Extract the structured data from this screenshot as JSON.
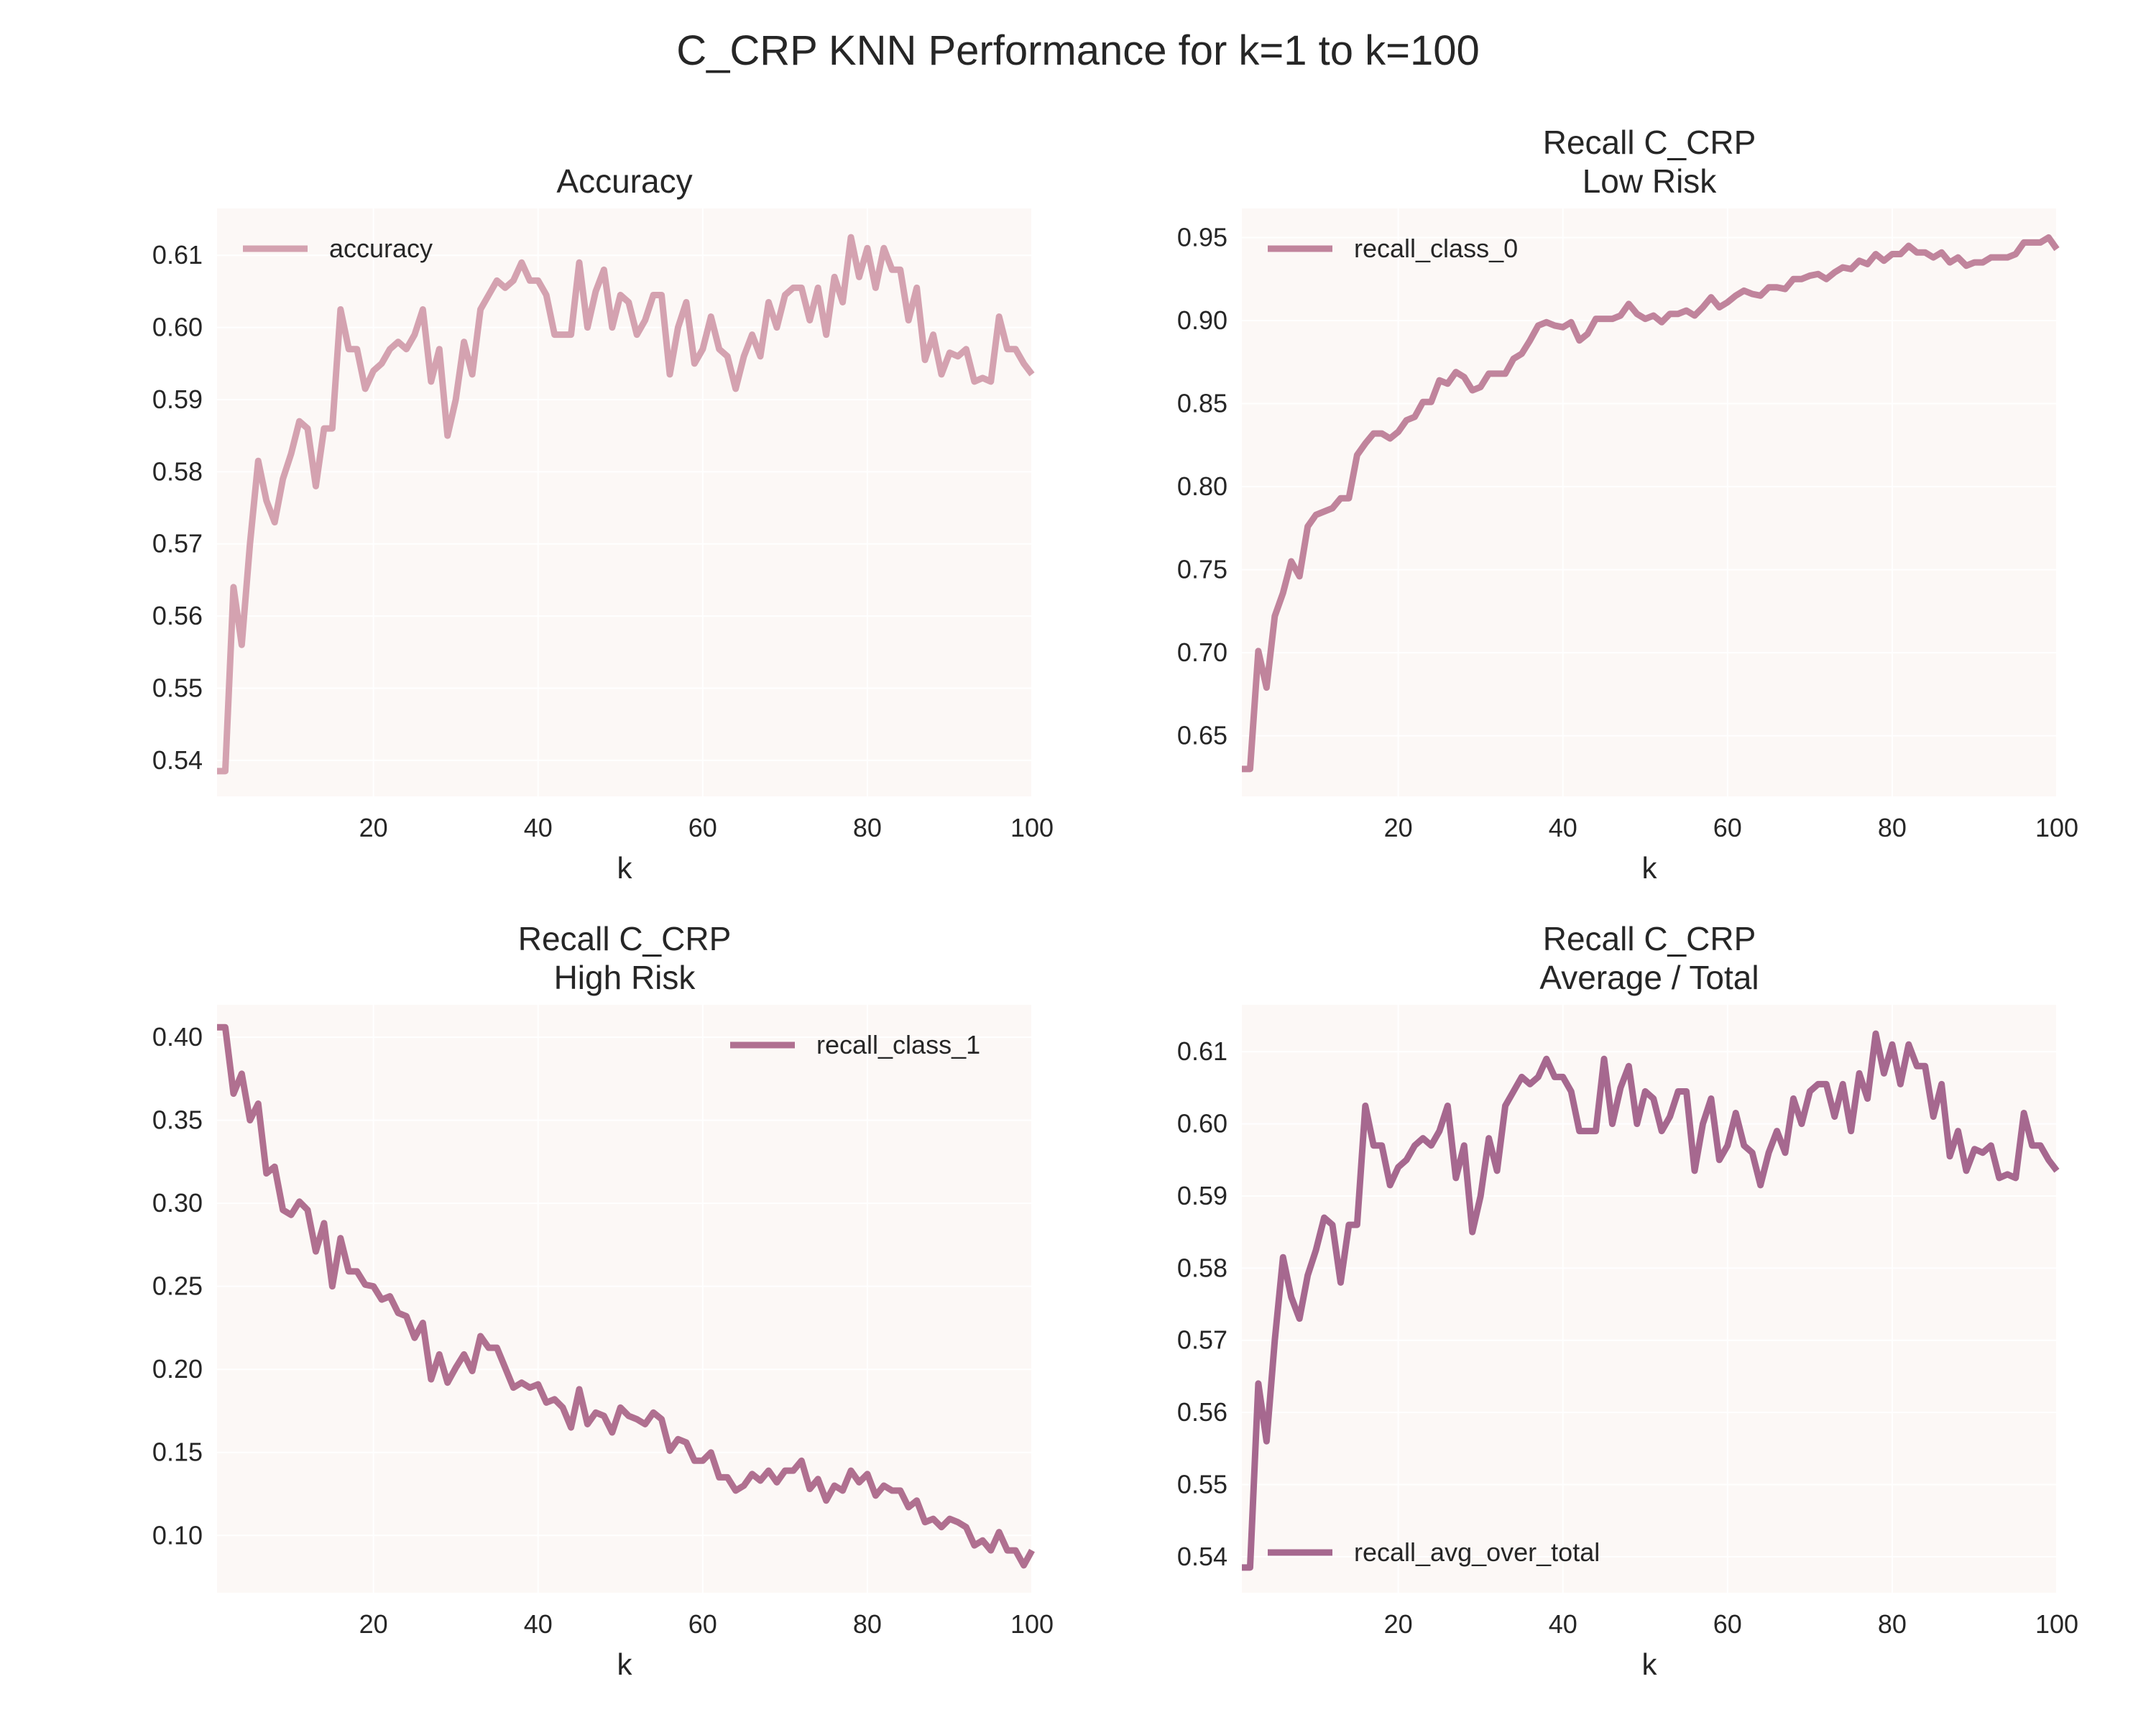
{
  "figure": {
    "title": "C_CRP KNN Performance for k=1 to k=100"
  },
  "theme": {
    "plot_bg": "#fcf8f6",
    "grid": "#ffffff",
    "text": "#262626"
  },
  "chart_data": [
    {
      "type": "line",
      "title": "Accuracy",
      "xlabel": "k",
      "ylabel": "",
      "xlim": [
        1,
        100
      ],
      "ylim": [
        0.535,
        0.6165
      ],
      "xticks": [
        20,
        40,
        60,
        80,
        100
      ],
      "yticks": [
        0.54,
        0.55,
        0.56,
        0.57,
        0.58,
        0.59,
        0.6,
        0.61
      ],
      "ytick_labels": [
        "0.54",
        "0.55",
        "0.56",
        "0.57",
        "0.58",
        "0.59",
        "0.60",
        "0.61"
      ],
      "legend_position": "upper-left",
      "grid": true,
      "series": [
        {
          "name": "accuracy",
          "color": "#d4a2b0",
          "x_start": 1,
          "values": [
            0.5385,
            0.5385,
            0.564,
            0.556,
            0.57,
            0.5815,
            0.576,
            0.573,
            0.579,
            0.5825,
            0.587,
            0.586,
            0.578,
            0.586,
            0.586,
            0.6025,
            0.597,
            0.597,
            0.5915,
            0.594,
            0.595,
            0.597,
            0.598,
            0.597,
            0.599,
            0.6025,
            0.5925,
            0.597,
            0.585,
            0.59,
            0.598,
            0.5935,
            0.6025,
            0.6045,
            0.6065,
            0.6055,
            0.6065,
            0.609,
            0.6065,
            0.6065,
            0.6045,
            0.599,
            0.599,
            0.599,
            0.609,
            0.6,
            0.605,
            0.608,
            0.6,
            0.6045,
            0.6035,
            0.599,
            0.601,
            0.6045,
            0.6045,
            0.5935,
            0.6,
            0.6035,
            0.595,
            0.597,
            0.6015,
            0.597,
            0.596,
            0.5915,
            0.596,
            0.599,
            0.596,
            0.6035,
            0.6,
            0.6045,
            0.6055,
            0.6055,
            0.601,
            0.6055,
            0.599,
            0.607,
            0.6035,
            0.6125,
            0.607,
            0.611,
            0.6055,
            0.611,
            0.608,
            0.608,
            0.601,
            0.6055,
            0.5955,
            0.599,
            0.5935,
            0.5965,
            0.596,
            0.597,
            0.5925,
            0.593,
            0.5925,
            0.6015,
            0.597,
            0.597,
            0.595,
            0.5935
          ]
        }
      ]
    },
    {
      "type": "line",
      "title": "Recall C_CRP\nLow Risk",
      "xlabel": "k",
      "ylabel": "",
      "xlim": [
        1,
        100
      ],
      "ylim": [
        0.6135,
        0.9675
      ],
      "xticks": [
        20,
        40,
        60,
        80,
        100
      ],
      "yticks": [
        0.65,
        0.7,
        0.75,
        0.8,
        0.85,
        0.9,
        0.95
      ],
      "ytick_labels": [
        "0.65",
        "0.70",
        "0.75",
        "0.80",
        "0.85",
        "0.90",
        "0.95"
      ],
      "legend_position": "upper-left",
      "grid": true,
      "series": [
        {
          "name": "recall_class_0",
          "color": "#c0849c",
          "x_start": 1,
          "values": [
            0.63,
            0.63,
            0.701,
            0.679,
            0.722,
            0.736,
            0.755,
            0.746,
            0.776,
            0.783,
            0.785,
            0.787,
            0.793,
            0.793,
            0.819,
            0.826,
            0.832,
            0.832,
            0.829,
            0.833,
            0.84,
            0.842,
            0.851,
            0.851,
            0.864,
            0.862,
            0.869,
            0.866,
            0.858,
            0.86,
            0.868,
            0.868,
            0.868,
            0.877,
            0.88,
            0.888,
            0.897,
            0.899,
            0.897,
            0.896,
            0.899,
            0.888,
            0.892,
            0.901,
            0.901,
            0.901,
            0.903,
            0.91,
            0.904,
            0.901,
            0.903,
            0.899,
            0.904,
            0.904,
            0.906,
            0.903,
            0.908,
            0.914,
            0.908,
            0.911,
            0.915,
            0.918,
            0.916,
            0.915,
            0.92,
            0.92,
            0.919,
            0.925,
            0.925,
            0.927,
            0.928,
            0.925,
            0.929,
            0.932,
            0.931,
            0.936,
            0.934,
            0.94,
            0.936,
            0.94,
            0.94,
            0.945,
            0.941,
            0.941,
            0.938,
            0.941,
            0.935,
            0.938,
            0.933,
            0.935,
            0.935,
            0.938,
            0.938,
            0.938,
            0.94,
            0.947,
            0.947,
            0.947,
            0.95,
            0.943
          ]
        }
      ]
    },
    {
      "type": "line",
      "title": "Recall C_CRP\nHigh Risk",
      "xlabel": "k",
      "ylabel": "",
      "xlim": [
        1,
        100
      ],
      "ylim": [
        0.0655,
        0.4195
      ],
      "xticks": [
        20,
        40,
        60,
        80,
        100
      ],
      "yticks": [
        0.1,
        0.15,
        0.2,
        0.25,
        0.3,
        0.35,
        0.4
      ],
      "ytick_labels": [
        "0.10",
        "0.15",
        "0.20",
        "0.25",
        "0.30",
        "0.35",
        "0.40"
      ],
      "legend_position": "upper-right",
      "grid": true,
      "series": [
        {
          "name": "recall_class_1",
          "color": "#b07090",
          "x_start": 1,
          "values": [
            0.406,
            0.406,
            0.366,
            0.378,
            0.35,
            0.36,
            0.318,
            0.322,
            0.296,
            0.293,
            0.301,
            0.296,
            0.271,
            0.288,
            0.25,
            0.279,
            0.259,
            0.259,
            0.251,
            0.25,
            0.242,
            0.244,
            0.234,
            0.232,
            0.219,
            0.228,
            0.194,
            0.209,
            0.192,
            0.201,
            0.209,
            0.199,
            0.22,
            0.213,
            0.213,
            0.201,
            0.189,
            0.192,
            0.189,
            0.191,
            0.18,
            0.182,
            0.177,
            0.165,
            0.188,
            0.167,
            0.174,
            0.172,
            0.162,
            0.177,
            0.172,
            0.17,
            0.167,
            0.174,
            0.17,
            0.151,
            0.158,
            0.156,
            0.145,
            0.145,
            0.15,
            0.135,
            0.135,
            0.127,
            0.13,
            0.137,
            0.133,
            0.139,
            0.132,
            0.139,
            0.139,
            0.145,
            0.128,
            0.134,
            0.121,
            0.13,
            0.127,
            0.139,
            0.132,
            0.137,
            0.124,
            0.13,
            0.127,
            0.127,
            0.117,
            0.121,
            0.108,
            0.11,
            0.105,
            0.11,
            0.108,
            0.105,
            0.094,
            0.097,
            0.091,
            0.102,
            0.091,
            0.091,
            0.082,
            0.091
          ]
        }
      ]
    },
    {
      "type": "line",
      "title": "Recall C_CRP\nAverage / Total",
      "xlabel": "k",
      "ylabel": "",
      "xlim": [
        1,
        100
      ],
      "ylim": [
        0.535,
        0.6165
      ],
      "xticks": [
        20,
        40,
        60,
        80,
        100
      ],
      "yticks": [
        0.54,
        0.55,
        0.56,
        0.57,
        0.58,
        0.59,
        0.6,
        0.61
      ],
      "ytick_labels": [
        "0.54",
        "0.55",
        "0.56",
        "0.57",
        "0.58",
        "0.59",
        "0.60",
        "0.61"
      ],
      "legend_position": "lower-left",
      "grid": true,
      "series": [
        {
          "name": "recall_avg_over_total",
          "color": "#a6688f",
          "x_start": 1,
          "values": [
            0.5385,
            0.5385,
            0.564,
            0.556,
            0.57,
            0.5815,
            0.576,
            0.573,
            0.579,
            0.5825,
            0.587,
            0.586,
            0.578,
            0.586,
            0.586,
            0.6025,
            0.597,
            0.597,
            0.5915,
            0.594,
            0.595,
            0.597,
            0.598,
            0.597,
            0.599,
            0.6025,
            0.5925,
            0.597,
            0.585,
            0.59,
            0.598,
            0.5935,
            0.6025,
            0.6045,
            0.6065,
            0.6055,
            0.6065,
            0.609,
            0.6065,
            0.6065,
            0.6045,
            0.599,
            0.599,
            0.599,
            0.609,
            0.6,
            0.605,
            0.608,
            0.6,
            0.6045,
            0.6035,
            0.599,
            0.601,
            0.6045,
            0.6045,
            0.5935,
            0.6,
            0.6035,
            0.595,
            0.597,
            0.6015,
            0.597,
            0.596,
            0.5915,
            0.596,
            0.599,
            0.596,
            0.6035,
            0.6,
            0.6045,
            0.6055,
            0.6055,
            0.601,
            0.6055,
            0.599,
            0.607,
            0.6035,
            0.6125,
            0.607,
            0.611,
            0.6055,
            0.611,
            0.608,
            0.608,
            0.601,
            0.6055,
            0.5955,
            0.599,
            0.5935,
            0.5965,
            0.596,
            0.597,
            0.5925,
            0.593,
            0.5925,
            0.6015,
            0.597,
            0.597,
            0.595,
            0.5935
          ]
        }
      ]
    }
  ]
}
